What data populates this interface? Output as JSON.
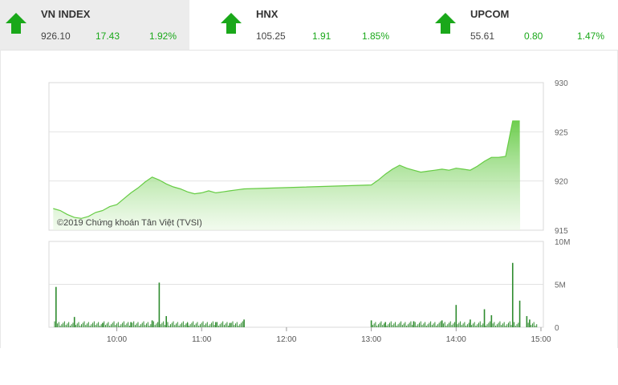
{
  "indices": [
    {
      "name": "VN INDEX",
      "value": "926.10",
      "change": "17.43",
      "percent": "1.92%",
      "selected": true,
      "arrow_icon": "up-arrow-icon",
      "color": "#1aa81a"
    },
    {
      "name": "HNX",
      "value": "105.25",
      "change": "1.91",
      "percent": "1.85%",
      "selected": false,
      "arrow_icon": "up-arrow-icon",
      "color": "#1aa81a"
    },
    {
      "name": "UPCOM",
      "value": "55.61",
      "change": "0.80",
      "percent": "1.47%",
      "selected": false,
      "arrow_icon": "up-arrow-icon",
      "color": "#1aa81a"
    }
  ],
  "chart_data": [
    {
      "type": "area",
      "watermark": "©2019 Chứng khoán Tân Việt (TVSI)",
      "ylim": [
        915,
        930
      ],
      "yticks": [
        "930",
        "925",
        "920",
        "915"
      ],
      "grid": true,
      "color": "#66cc44",
      "series": [
        {
          "x": [
            "09:15",
            "09:20",
            "09:25",
            "09:30",
            "09:35",
            "09:40",
            "09:45",
            "09:50",
            "09:55",
            "10:00",
            "10:05",
            "10:10",
            "10:15",
            "10:20",
            "10:25",
            "10:30",
            "10:35",
            "10:40",
            "10:45",
            "10:50",
            "10:55",
            "11:00",
            "11:05",
            "11:10",
            "11:15",
            "11:20",
            "11:25",
            "11:30",
            "13:00",
            "13:05",
            "13:10",
            "13:15",
            "13:20",
            "13:25",
            "13:30",
            "13:35",
            "13:40",
            "13:45",
            "13:50",
            "13:55",
            "14:00",
            "14:05",
            "14:10",
            "14:15",
            "14:20",
            "14:25",
            "14:30",
            "14:35",
            "14:40",
            "14:45"
          ],
          "values": [
            917.2,
            917.0,
            916.6,
            916.3,
            916.2,
            916.4,
            916.8,
            917.0,
            917.4,
            917.6,
            918.2,
            918.8,
            919.3,
            919.9,
            920.4,
            920.1,
            919.7,
            919.4,
            919.2,
            918.9,
            918.7,
            918.8,
            919.0,
            918.8,
            918.9,
            919.0,
            919.1,
            919.2,
            919.6,
            920.1,
            920.7,
            921.2,
            921.6,
            921.3,
            921.1,
            920.9,
            921.0,
            921.1,
            921.2,
            921.1,
            921.3,
            921.2,
            921.1,
            921.5,
            922.0,
            922.4,
            922.4,
            922.5,
            926.1,
            926.1
          ]
        }
      ]
    },
    {
      "type": "bar",
      "ylim": [
        0,
        10
      ],
      "yticks": [
        "10M",
        "5M",
        "0"
      ],
      "xticks": [
        "10:00",
        "11:00",
        "12:00",
        "13:00",
        "14:00",
        "15:00"
      ],
      "grid": true,
      "color": "#2e8b2e",
      "unit": "M",
      "series": [
        {
          "x": [
            "09:17",
            "09:30",
            "09:50",
            "10:10",
            "10:25",
            "10:30",
            "10:35",
            "10:50",
            "11:10",
            "11:20",
            "11:30",
            "13:00",
            "13:10",
            "13:30",
            "13:50",
            "14:00",
            "14:10",
            "14:20",
            "14:25",
            "14:40",
            "14:45",
            "14:50",
            "14:52"
          ],
          "values": [
            4.7,
            1.2,
            0.5,
            0.6,
            0.8,
            5.2,
            1.3,
            0.5,
            0.6,
            0.5,
            0.9,
            0.8,
            0.6,
            0.7,
            0.8,
            2.6,
            0.9,
            2.1,
            1.4,
            7.5,
            3.1,
            1.3,
            0.9
          ]
        }
      ]
    }
  ]
}
